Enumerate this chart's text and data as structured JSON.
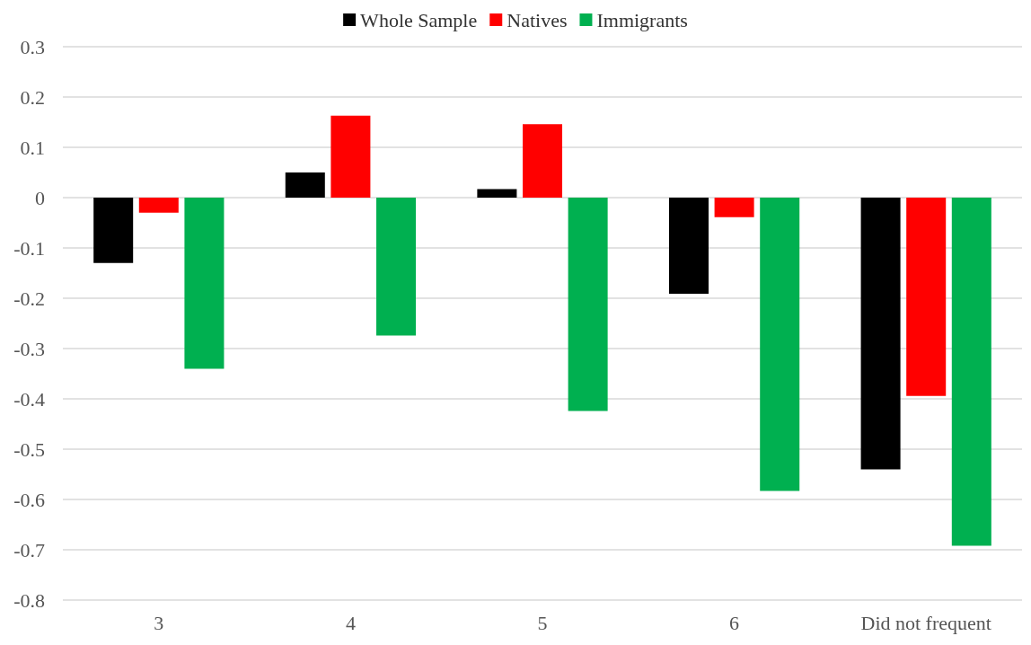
{
  "chart_data": {
    "type": "bar",
    "categories": [
      "3",
      "4",
      "5",
      "6",
      "Did not frequent"
    ],
    "series": [
      {
        "name": "Whole Sample",
        "color": "#000000",
        "values": [
          -0.13,
          0.05,
          0.017,
          -0.191,
          -0.54
        ]
      },
      {
        "name": "Natives",
        "color": "#ff0000",
        "values": [
          -0.03,
          0.163,
          0.146,
          -0.039,
          -0.394
        ]
      },
      {
        "name": "Immigrants",
        "color": "#00b050",
        "values": [
          -0.34,
          -0.274,
          -0.424,
          -0.583,
          -0.692
        ]
      }
    ],
    "ylim": [
      -0.8,
      0.3
    ],
    "yticks": [
      -0.8,
      -0.7,
      -0.6,
      -0.5,
      -0.4,
      -0.3,
      -0.2,
      -0.1,
      0,
      0.1,
      0.2,
      0.3
    ],
    "grid": "y",
    "legend": "top"
  }
}
